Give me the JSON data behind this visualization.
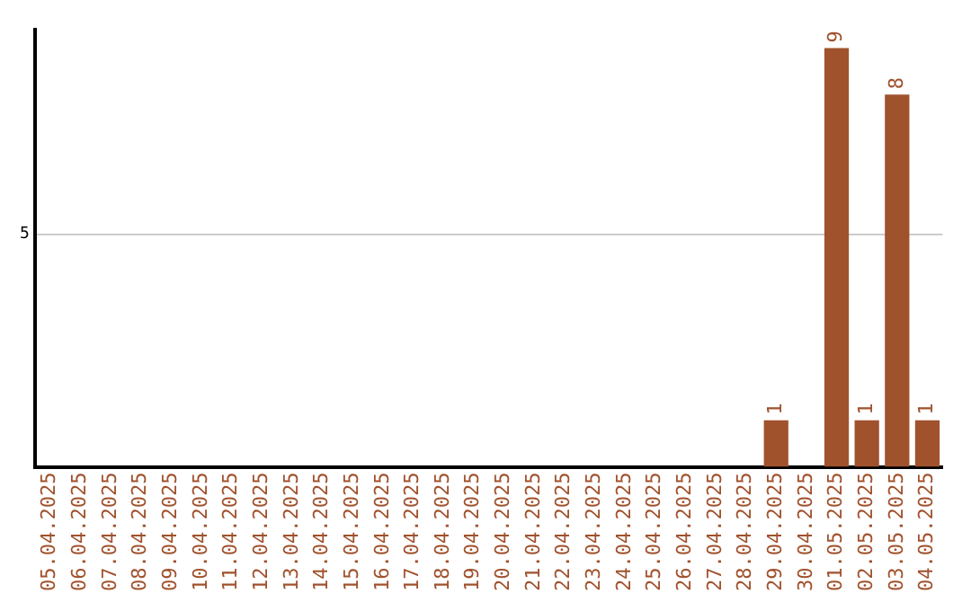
{
  "chart_data": {
    "type": "bar",
    "categories": [
      "05.04.2025",
      "06.04.2025",
      "07.04.2025",
      "08.04.2025",
      "09.04.2025",
      "10.04.2025",
      "11.04.2025",
      "12.04.2025",
      "13.04.2025",
      "14.04.2025",
      "15.04.2025",
      "16.04.2025",
      "17.04.2025",
      "18.04.2025",
      "19.04.2025",
      "20.04.2025",
      "21.04.2025",
      "22.04.2025",
      "23.04.2025",
      "24.04.2025",
      "25.04.2025",
      "26.04.2025",
      "27.04.2025",
      "28.04.2025",
      "29.04.2025",
      "30.04.2025",
      "01.05.2025",
      "02.05.2025",
      "03.05.2025",
      "04.05.2025"
    ],
    "values": [
      null,
      null,
      null,
      null,
      null,
      null,
      null,
      null,
      null,
      null,
      null,
      null,
      null,
      null,
      null,
      null,
      null,
      null,
      null,
      null,
      null,
      null,
      null,
      null,
      1,
      null,
      9,
      1,
      8,
      1
    ],
    "color": "#a0522d",
    "ylim": [
      0,
      9.4
    ],
    "yticks": [
      5
    ],
    "grid": "y",
    "data_labels": true
  }
}
